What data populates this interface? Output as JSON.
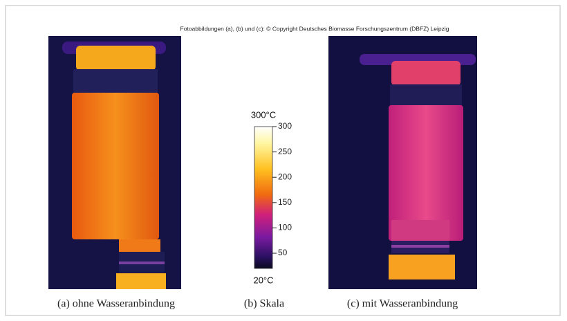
{
  "credit": "Fotoabbildungen (a), (b) und (c): © Copyright Deutsches Biomasse Forschungszentrum (DBFZ) Leipzig",
  "scale": {
    "top_label": "300°C",
    "bottom_label": "20°C",
    "range": [
      20,
      300
    ],
    "ticks": [
      50,
      100,
      150,
      200,
      250,
      300
    ]
  },
  "captions": [
    "(a) ohne Wasseranbindung",
    "(b) Skala",
    "(c) mit Wasseranbindung"
  ]
}
